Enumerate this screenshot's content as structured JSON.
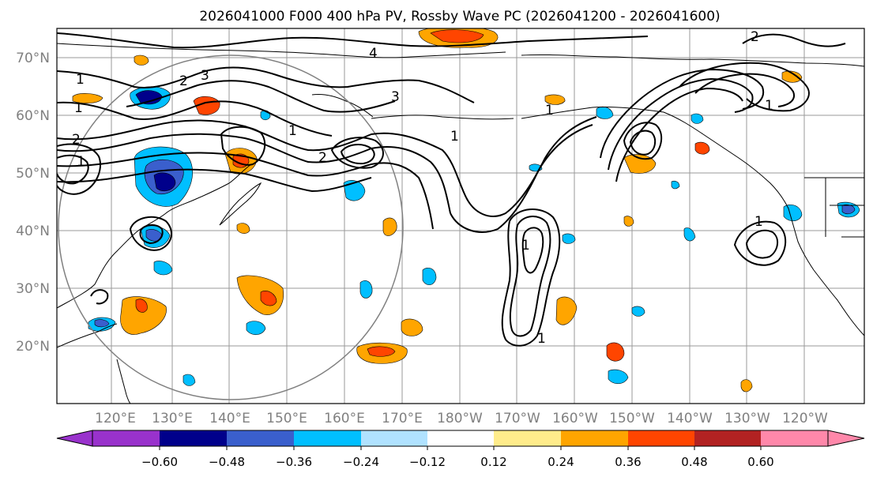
{
  "title": "2026041000 F000 400 hPa PV, Rossby Wave PC (2026041200 - 2026041600)",
  "map": {
    "lat_labels": [
      "70°N",
      "60°N",
      "50°N",
      "40°N",
      "30°N",
      "20°N"
    ],
    "lon_labels": [
      "120°E",
      "130°E",
      "140°E",
      "150°E",
      "160°E",
      "170°E",
      "180°W",
      "170°W",
      "160°W",
      "150°W",
      "140°W",
      "130°W",
      "120°W"
    ],
    "contour_labels": [
      "1",
      "1",
      "2",
      "3",
      "4",
      "2",
      "1",
      "1",
      "2",
      "3",
      "2",
      "1",
      "1",
      "1",
      "1",
      "1",
      "1"
    ],
    "colors": {
      "land": "#ffffff",
      "coast": "#000000",
      "grid": "#9a9a9a",
      "circle": "#808080"
    }
  },
  "colorbar": {
    "ticks": [
      "−0.60",
      "−0.48",
      "−0.36",
      "−0.24",
      "−0.12",
      "0.12",
      "0.24",
      "0.36",
      "0.48",
      "0.60"
    ],
    "colors": [
      "#9932cc",
      "#00008b",
      "#3a5fcd",
      "#00bfff",
      "#b0e2ff",
      "#ffffff",
      "#ffec8b",
      "#ffa500",
      "#ff4500",
      "#b22222",
      "#ff88aa"
    ]
  }
}
